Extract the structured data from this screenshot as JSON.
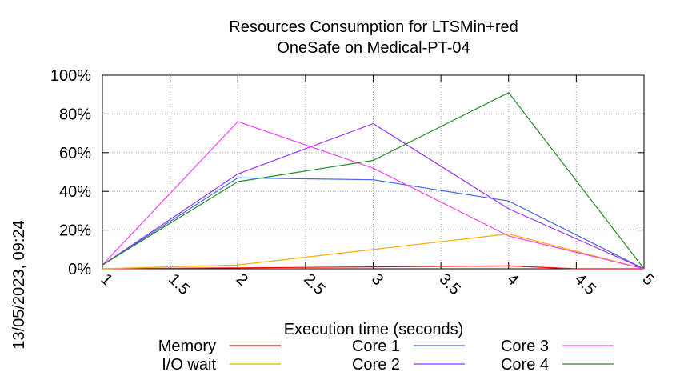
{
  "chart_data": {
    "type": "line",
    "title_lines": [
      "Resources Consumption for LTSMin+red",
      "OneSafe on Medical-PT-04"
    ],
    "xlabel": "Execution time (seconds)",
    "ylabel": "",
    "side_label": "13/05/2023, 09:24",
    "xlim": [
      1,
      5
    ],
    "ylim": [
      0,
      100
    ],
    "xticks": [
      1,
      1.5,
      2,
      2.5,
      3,
      3.5,
      4,
      4.5,
      5
    ],
    "xtick_labels": [
      "1",
      "1.5",
      "2",
      "2.5",
      "3",
      "3.5",
      "4",
      "4.5",
      "5"
    ],
    "yticks": [
      0,
      20,
      40,
      60,
      80,
      100
    ],
    "ytick_labels": [
      "0%",
      "20%",
      "40%",
      "60%",
      "80%",
      "100%"
    ],
    "grid": true,
    "legend_position": "bottom",
    "series": [
      {
        "name": "Memory",
        "color": "#ff0000",
        "x": [
          1,
          2,
          3,
          4,
          4.5,
          5
        ],
        "y": [
          0,
          0.5,
          1,
          1.5,
          0,
          0
        ]
      },
      {
        "name": "I/O wait",
        "color": "#ffa500",
        "x": [
          1,
          2,
          4,
          5
        ],
        "y": [
          0,
          2,
          18,
          0
        ]
      },
      {
        "name": "Core 1",
        "color": "#4169e1",
        "x": [
          1,
          2,
          3,
          4,
          5
        ],
        "y": [
          2,
          47,
          46,
          35,
          0
        ]
      },
      {
        "name": "Core 2",
        "color": "#9b30ff",
        "x": [
          1,
          2,
          3,
          4,
          5
        ],
        "y": [
          2,
          49,
          75,
          31,
          0
        ]
      },
      {
        "name": "Core 3",
        "color": "#ff40ff",
        "x": [
          1,
          2,
          3,
          4,
          5
        ],
        "y": [
          2,
          76,
          52,
          17,
          0
        ]
      },
      {
        "name": "Core 4",
        "color": "#228b22",
        "x": [
          1,
          2,
          3,
          4,
          5
        ],
        "y": [
          2,
          45,
          56,
          91,
          0
        ]
      }
    ]
  }
}
